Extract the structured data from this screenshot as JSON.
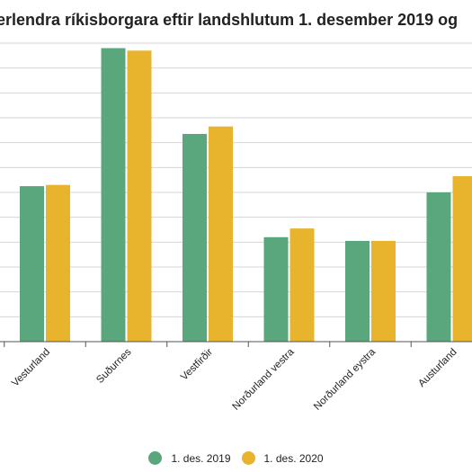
{
  "chart_data": {
    "type": "bar",
    "title": "erlendra ríkisborgara eftir landshlutum 1. desember 2019 og",
    "categories": [
      "Vesturland",
      "Suðurnes",
      "Vestfirðir",
      "Norðurland vestra",
      "Norðurland eystra",
      "Austurland"
    ],
    "series": [
      {
        "name": "1. des. 2019",
        "color": "#5aa77d",
        "values": [
          62.5,
          118.0,
          83.5,
          42.0,
          40.5,
          60.0
        ]
      },
      {
        "name": "1. des. 2020",
        "color": "#e8b42e",
        "values": [
          63.0,
          117.0,
          86.5,
          45.5,
          40.5,
          66.5
        ]
      }
    ],
    "ylim": [
      0,
      120
    ],
    "grid": true,
    "legend_position": "bottom"
  }
}
